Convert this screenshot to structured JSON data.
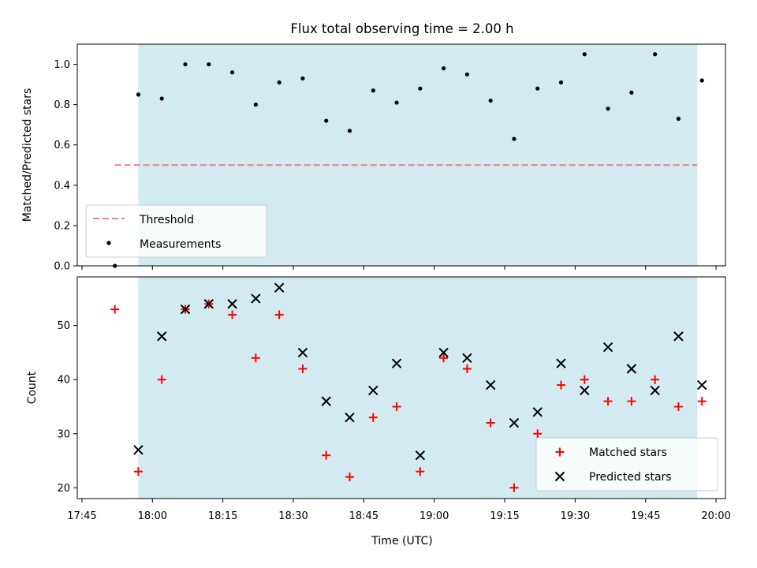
{
  "title": "Flux total observing time = 2.00 h",
  "xlabel": "Time (UTC)",
  "x_tick_labels": [
    "17:45",
    "18:00",
    "18:15",
    "18:30",
    "18:45",
    "19:00",
    "19:15",
    "19:30",
    "19:45",
    "20:00"
  ],
  "colors": {
    "observing_span": "#d3eaf0",
    "threshold": "#f07f7f",
    "measurements": "#000000",
    "matched": "#ff0000",
    "predicted": "#000000"
  },
  "chart_data": [
    {
      "type": "scatter",
      "ylabel": "Matched/Predicted stars",
      "ylim": [
        0,
        1.1
      ],
      "xlim": [
        "17:44",
        "20:02"
      ],
      "y_tick_labels": [
        "0.0",
        "0.2",
        "0.4",
        "0.6",
        "0.8",
        "1.0"
      ],
      "shaded_span": [
        "17:57",
        "19:56"
      ],
      "threshold": {
        "name": "Threshold",
        "value": 0.5,
        "x_range": [
          "17:52",
          "19:56"
        ],
        "style": "dashed"
      },
      "legend": {
        "placement": "lower-left",
        "entries": [
          "Threshold",
          "Measurements"
        ]
      },
      "series": [
        {
          "name": "Measurements",
          "marker": "dot",
          "x": [
            "17:52",
            "17:57",
            "18:02",
            "18:07",
            "18:12",
            "18:17",
            "18:22",
            "18:27",
            "18:32",
            "18:37",
            "18:42",
            "18:47",
            "18:52",
            "18:57",
            "19:02",
            "19:07",
            "19:12",
            "19:17",
            "19:22",
            "19:27",
            "19:32",
            "19:37",
            "19:42",
            "19:47",
            "19:52",
            "19:57"
          ],
          "values": [
            0.0,
            0.85,
            0.83,
            1.0,
            1.0,
            0.96,
            0.8,
            0.91,
            0.93,
            0.72,
            0.67,
            0.87,
            0.81,
            0.88,
            0.98,
            0.95,
            0.82,
            0.63,
            0.88,
            0.91,
            1.05,
            0.78,
            0.86,
            1.05,
            0.73,
            0.92
          ]
        }
      ]
    },
    {
      "type": "scatter",
      "ylabel": "Count",
      "ylim": [
        18,
        59
      ],
      "xlim": [
        "17:44",
        "20:02"
      ],
      "y_tick_labels": [
        "20",
        "30",
        "40",
        "50"
      ],
      "shaded_span": [
        "17:57",
        "19:56"
      ],
      "legend": {
        "placement": "lower-right",
        "entries": [
          "Matched stars",
          "Predicted stars"
        ]
      },
      "series": [
        {
          "name": "Matched stars",
          "marker": "plus",
          "x": [
            "17:52",
            "17:57",
            "18:02",
            "18:07",
            "18:12",
            "18:17",
            "18:22",
            "18:27",
            "18:32",
            "18:37",
            "18:42",
            "18:47",
            "18:52",
            "18:57",
            "19:02",
            "19:07",
            "19:12",
            "19:17",
            "19:22",
            "19:27",
            "19:32",
            "19:37",
            "19:42",
            "19:47",
            "19:52",
            "19:57"
          ],
          "values": [
            53,
            23,
            40,
            53,
            54,
            52,
            44,
            52,
            42,
            26,
            22,
            33,
            35,
            23,
            44,
            42,
            32,
            20,
            30,
            39,
            40,
            36,
            36,
            40,
            35,
            36
          ]
        },
        {
          "name": "Predicted stars",
          "marker": "x",
          "x": [
            "17:57",
            "18:02",
            "18:07",
            "18:12",
            "18:17",
            "18:22",
            "18:27",
            "18:32",
            "18:37",
            "18:42",
            "18:47",
            "18:52",
            "18:57",
            "19:02",
            "19:07",
            "19:12",
            "19:17",
            "19:22",
            "19:27",
            "19:32",
            "19:37",
            "19:42",
            "19:47",
            "19:52",
            "19:57"
          ],
          "values": [
            27,
            48,
            53,
            54,
            54,
            55,
            57,
            45,
            36,
            33,
            38,
            43,
            26,
            45,
            44,
            39,
            32,
            34,
            43,
            38,
            46,
            42,
            38,
            48,
            39
          ]
        }
      ]
    }
  ]
}
